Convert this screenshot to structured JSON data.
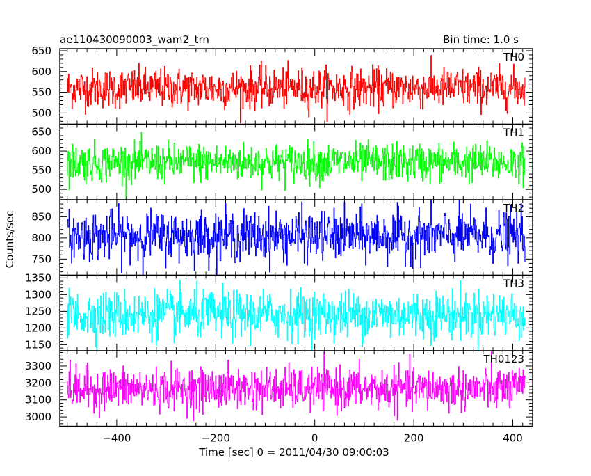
{
  "chart_data": {
    "type": "line",
    "title": "ae110430090003_wam2_trn",
    "subtitle": "Bin time: 1.0 s",
    "xlabel": "Time [sec] 0 = 2011/04/30 09:00:03",
    "ylabel": "Counts/sec",
    "xlim": [
      -515,
      440
    ],
    "x_range": [
      -500,
      425
    ],
    "bin_time": 1.0,
    "x_ticks": [
      -400,
      -200,
      0,
      200,
      400
    ],
    "x_tick_labels": [
      "−400",
      "−200",
      "0",
      "200",
      "400"
    ],
    "grid": false,
    "series": [
      {
        "name": "TH0",
        "color": "#ff0000",
        "mean": 560,
        "spread": 24,
        "ylim": [
          473,
          655
        ],
        "yticks": [
          500,
          550,
          600,
          650
        ]
      },
      {
        "name": "TH1",
        "color": "#00ff00",
        "mean": 570,
        "spread": 25,
        "ylim": [
          473,
          670
        ],
        "yticks": [
          500,
          550,
          600,
          650
        ]
      },
      {
        "name": "TH2",
        "color": "#0000ff",
        "mean": 805,
        "spread": 29,
        "ylim": [
          712,
          890
        ],
        "yticks": [
          750,
          800,
          850
        ]
      },
      {
        "name": "TH3",
        "color": "#00ffff",
        "mean": 1240,
        "spread": 36,
        "ylim": [
          1132,
          1358
        ],
        "yticks": [
          1150,
          1200,
          1250,
          1300,
          1350
        ]
      },
      {
        "name": "TH0123",
        "color": "#ff00ff",
        "mean": 3165,
        "spread": 62,
        "ylim": [
          2945,
          3390
        ],
        "yticks": [
          3000,
          3100,
          3200,
          3300
        ]
      }
    ]
  }
}
